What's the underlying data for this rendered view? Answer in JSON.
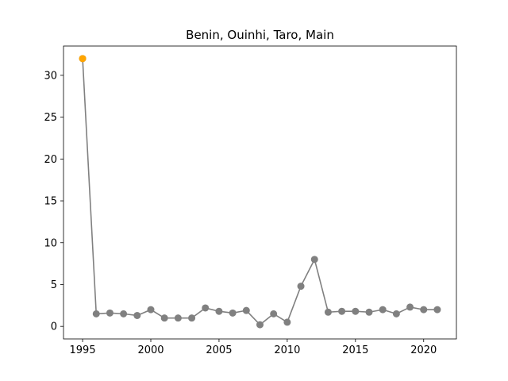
{
  "chart_data": {
    "type": "line",
    "title": "Benin, Ouinhi, Taro, Main",
    "xlabel": "",
    "ylabel": "",
    "xlim": [
      1993.6,
      2022.4
    ],
    "ylim": [
      -1.5,
      33.5
    ],
    "xticks": [
      1995,
      2000,
      2005,
      2010,
      2015,
      2020
    ],
    "yticks": [
      0,
      5,
      10,
      15,
      20,
      25,
      30
    ],
    "grid": false,
    "legend": "none",
    "colors": {
      "line": "#808080",
      "point": "#808080",
      "highlight": "#ffa500"
    },
    "series": [
      {
        "x": [
          1995,
          1996,
          1997,
          1998,
          1999,
          2000,
          2001,
          2002,
          2003,
          2004,
          2005,
          2006,
          2007,
          2008,
          2009,
          2010,
          2011,
          2012,
          2013,
          2014,
          2015,
          2016,
          2017,
          2018,
          2019,
          2020,
          2021
        ],
        "values": [
          32.0,
          1.5,
          1.6,
          1.5,
          1.3,
          2.0,
          1.0,
          1.0,
          1.0,
          2.2,
          1.8,
          1.6,
          1.9,
          0.2,
          1.5,
          0.5,
          4.8,
          8.0,
          1.7,
          1.8,
          1.8,
          1.7,
          2.0,
          1.5,
          2.3,
          2.0,
          2.0
        ]
      }
    ],
    "highlight": [
      {
        "x": 1995,
        "value": 32.0
      }
    ]
  }
}
